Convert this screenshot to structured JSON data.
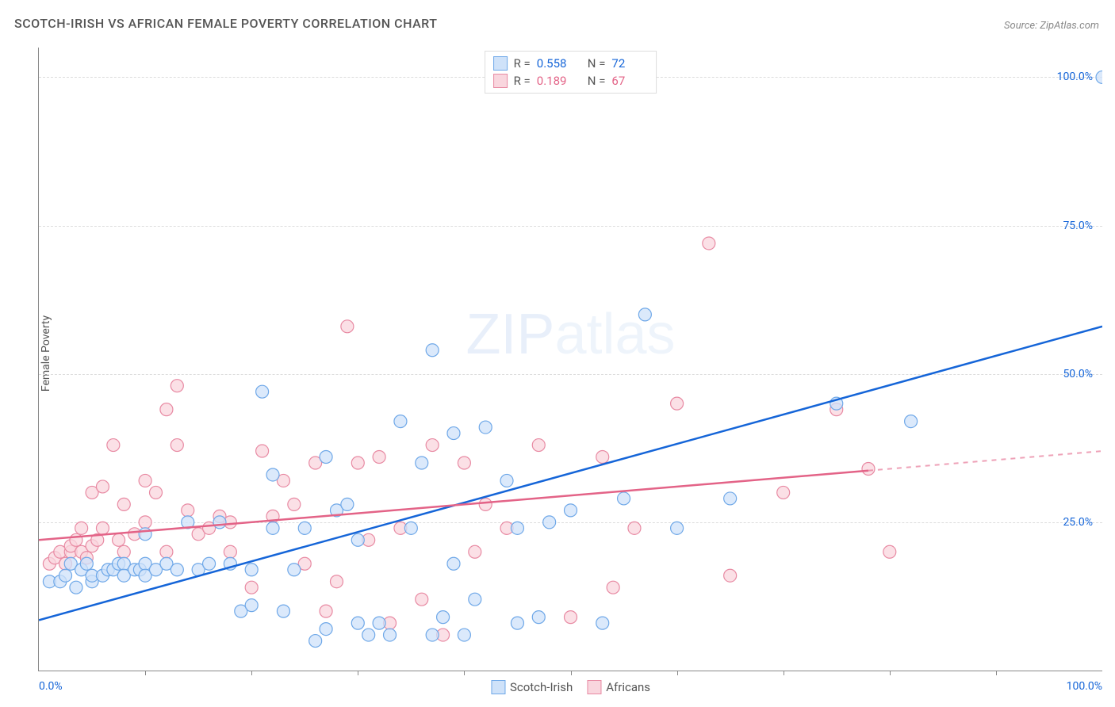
{
  "title": "SCOTCH-IRISH VS AFRICAN FEMALE POVERTY CORRELATION CHART",
  "source": "Source: ZipAtlas.com",
  "ylabel": "Female Poverty",
  "watermark_a": "ZIP",
  "watermark_b": "atlas",
  "chart": {
    "type": "scatter",
    "xlim": [
      0,
      100
    ],
    "ylim": [
      0,
      105
    ],
    "yticks": [
      25,
      50,
      75,
      100
    ],
    "ytick_labels": [
      "25.0%",
      "50.0%",
      "75.0%",
      "100.0%"
    ],
    "xtick_labels": {
      "left": "0.0%",
      "right": "100.0%"
    },
    "xtick_marks": [
      10,
      20,
      30,
      40,
      50,
      60,
      70,
      80,
      90
    ],
    "background_color": "#ffffff",
    "grid_color": "#dddddd",
    "axis_color": "#888888",
    "label_color": "#555555"
  },
  "series": [
    {
      "name": "Scotch-Irish",
      "color_fill": "#cfe2f9",
      "color_stroke": "#6fa8e8",
      "trend_color": "#1565d8",
      "text_color": "#1565d8",
      "R": "0.558",
      "N": "72",
      "trend": {
        "x1": 0,
        "y1": 8.5,
        "x2": 100,
        "y2": 58
      },
      "trend_dash_from_x": null,
      "marker_r": 8,
      "points": [
        [
          100,
          100
        ],
        [
          1,
          15
        ],
        [
          2,
          15
        ],
        [
          2.5,
          16
        ],
        [
          3,
          18
        ],
        [
          3.5,
          14
        ],
        [
          4,
          17
        ],
        [
          4.5,
          18
        ],
        [
          5,
          15
        ],
        [
          5,
          16
        ],
        [
          6,
          16
        ],
        [
          6.5,
          17
        ],
        [
          7,
          17
        ],
        [
          7.5,
          18
        ],
        [
          8,
          18
        ],
        [
          8,
          16
        ],
        [
          9,
          17
        ],
        [
          9.5,
          17
        ],
        [
          10,
          18
        ],
        [
          10,
          16
        ],
        [
          10,
          23
        ],
        [
          11,
          17
        ],
        [
          12,
          18
        ],
        [
          13,
          17
        ],
        [
          14,
          25
        ],
        [
          15,
          17
        ],
        [
          16,
          18
        ],
        [
          17,
          25
        ],
        [
          18,
          18
        ],
        [
          19,
          10
        ],
        [
          20,
          17
        ],
        [
          20,
          11
        ],
        [
          21,
          47
        ],
        [
          22,
          33
        ],
        [
          22,
          24
        ],
        [
          23,
          10
        ],
        [
          24,
          17
        ],
        [
          25,
          24
        ],
        [
          26,
          5
        ],
        [
          27,
          7
        ],
        [
          27,
          36
        ],
        [
          28,
          27
        ],
        [
          29,
          28
        ],
        [
          30,
          22
        ],
        [
          30,
          8
        ],
        [
          31,
          6
        ],
        [
          32,
          8
        ],
        [
          33,
          6
        ],
        [
          34,
          42
        ],
        [
          35,
          24
        ],
        [
          36,
          35
        ],
        [
          37,
          6
        ],
        [
          37,
          54
        ],
        [
          38,
          9
        ],
        [
          39,
          18
        ],
        [
          39,
          40
        ],
        [
          40,
          6
        ],
        [
          41,
          12
        ],
        [
          42,
          41
        ],
        [
          44,
          32
        ],
        [
          45,
          24
        ],
        [
          45,
          8
        ],
        [
          47,
          9
        ],
        [
          48,
          25
        ],
        [
          50,
          27
        ],
        [
          53,
          8
        ],
        [
          55,
          29
        ],
        [
          57,
          60
        ],
        [
          60,
          24
        ],
        [
          65,
          29
        ],
        [
          75,
          45
        ],
        [
          82,
          42
        ]
      ]
    },
    {
      "name": "Africans",
      "color_fill": "#f9d6de",
      "color_stroke": "#e88aa3",
      "trend_color": "#e36387",
      "text_color": "#e36387",
      "R": "0.189",
      "N": "67",
      "trend": {
        "x1": 0,
        "y1": 22,
        "x2": 100,
        "y2": 37
      },
      "trend_dash_from_x": 78,
      "marker_r": 8,
      "points": [
        [
          1,
          18
        ],
        [
          1.5,
          19
        ],
        [
          2,
          20
        ],
        [
          2.5,
          18
        ],
        [
          3,
          20
        ],
        [
          3,
          21
        ],
        [
          3.5,
          22
        ],
        [
          4,
          20
        ],
        [
          4,
          24
        ],
        [
          4.5,
          19
        ],
        [
          5,
          21
        ],
        [
          5,
          30
        ],
        [
          5.5,
          22
        ],
        [
          6,
          31
        ],
        [
          6,
          24
        ],
        [
          7,
          38
        ],
        [
          7.5,
          22
        ],
        [
          8,
          28
        ],
        [
          8,
          20
        ],
        [
          9,
          23
        ],
        [
          10,
          25
        ],
        [
          10,
          32
        ],
        [
          11,
          30
        ],
        [
          12,
          44
        ],
        [
          12,
          20
        ],
        [
          13,
          38
        ],
        [
          13,
          48
        ],
        [
          14,
          27
        ],
        [
          15,
          23
        ],
        [
          16,
          24
        ],
        [
          17,
          26
        ],
        [
          18,
          25
        ],
        [
          18,
          20
        ],
        [
          20,
          14
        ],
        [
          21,
          37
        ],
        [
          22,
          26
        ],
        [
          23,
          32
        ],
        [
          24,
          28
        ],
        [
          25,
          18
        ],
        [
          26,
          35
        ],
        [
          27,
          10
        ],
        [
          28,
          15
        ],
        [
          29,
          58
        ],
        [
          30,
          35
        ],
        [
          31,
          22
        ],
        [
          32,
          36
        ],
        [
          33,
          8
        ],
        [
          34,
          24
        ],
        [
          36,
          12
        ],
        [
          37,
          38
        ],
        [
          38,
          6
        ],
        [
          40,
          35
        ],
        [
          41,
          20
        ],
        [
          42,
          28
        ],
        [
          44,
          24
        ],
        [
          47,
          38
        ],
        [
          50,
          9
        ],
        [
          53,
          36
        ],
        [
          54,
          14
        ],
        [
          56,
          24
        ],
        [
          60,
          45
        ],
        [
          63,
          72
        ],
        [
          65,
          16
        ],
        [
          70,
          30
        ],
        [
          75,
          44
        ],
        [
          78,
          34
        ],
        [
          80,
          20
        ]
      ]
    }
  ],
  "legend_bottom": [
    {
      "label": "Scotch-Irish",
      "fill": "#cfe2f9",
      "stroke": "#6fa8e8"
    },
    {
      "label": "Africans",
      "fill": "#f9d6de",
      "stroke": "#e88aa3"
    }
  ]
}
